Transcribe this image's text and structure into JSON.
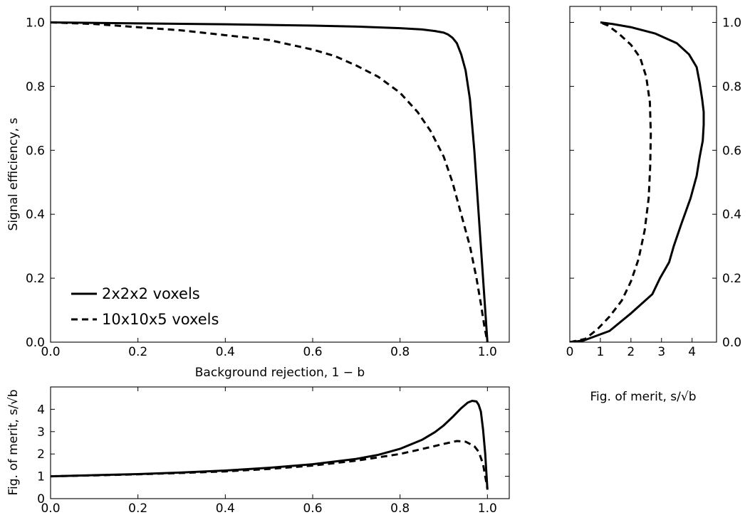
{
  "chart_data": [
    {
      "id": "main",
      "type": "line",
      "title": "",
      "xlabel": "Background rejection, 1 − b",
      "ylabel": "Signal efficiency, s",
      "xlim": [
        0,
        1.05
      ],
      "ylim": [
        0,
        1.05
      ],
      "xticks": [
        "0.0",
        "0.2",
        "0.4",
        "0.6",
        "0.8",
        "1.0"
      ],
      "yticks": [
        "0.0",
        "0.2",
        "0.4",
        "0.6",
        "0.8",
        "1.0"
      ],
      "grid": false,
      "legend_position": "lower-left",
      "series": [
        {
          "name": "2x2x2 voxels",
          "style": "solid",
          "x": [
            0.0,
            0.2,
            0.4,
            0.6,
            0.7,
            0.8,
            0.85,
            0.88,
            0.9,
            0.91,
            0.92,
            0.93,
            0.94,
            0.95,
            0.96,
            0.97,
            0.975,
            0.98,
            0.985,
            0.99,
            0.995,
            1.0
          ],
          "y": [
            1.0,
            0.997,
            0.994,
            0.99,
            0.987,
            0.982,
            0.978,
            0.973,
            0.968,
            0.962,
            0.952,
            0.935,
            0.9,
            0.85,
            0.76,
            0.6,
            0.5,
            0.4,
            0.3,
            0.2,
            0.1,
            0.0
          ]
        },
        {
          "name": "10x10x5 voxels",
          "style": "dashed",
          "x": [
            0.0,
            0.1,
            0.2,
            0.3,
            0.4,
            0.5,
            0.6,
            0.65,
            0.7,
            0.75,
            0.8,
            0.84,
            0.87,
            0.9,
            0.92,
            0.94,
            0.96,
            0.975,
            0.985,
            0.993,
            1.0
          ],
          "y": [
            1.0,
            0.995,
            0.985,
            0.975,
            0.96,
            0.945,
            0.915,
            0.895,
            0.865,
            0.83,
            0.78,
            0.72,
            0.66,
            0.58,
            0.5,
            0.4,
            0.3,
            0.2,
            0.12,
            0.05,
            0.0
          ]
        }
      ]
    },
    {
      "id": "right",
      "type": "line",
      "title": "",
      "xlabel": "Fig. of merit, s/√b",
      "ylabel": "",
      "xlim": [
        0,
        4.8
      ],
      "ylim": [
        0,
        1.05
      ],
      "xticks": [
        "0",
        "1",
        "2",
        "3",
        "4"
      ],
      "yticks": [
        "0.0",
        "0.2",
        "0.4",
        "0.6",
        "0.8",
        "1.0"
      ],
      "grid": false,
      "series": [
        {
          "name": "2x2x2 voxels",
          "style": "solid",
          "x": [
            0.0,
            0.45,
            1.3,
            2.0,
            2.7,
            2.95,
            3.25,
            3.4,
            3.65,
            3.95,
            4.15,
            4.25,
            4.35,
            4.38,
            4.38,
            4.33,
            4.25,
            4.15,
            3.9,
            3.5,
            2.8,
            2.0,
            1.4,
            1.0
          ],
          "y": [
            0.0,
            0.005,
            0.035,
            0.09,
            0.15,
            0.2,
            0.25,
            0.3,
            0.37,
            0.45,
            0.52,
            0.58,
            0.63,
            0.68,
            0.72,
            0.76,
            0.81,
            0.86,
            0.9,
            0.935,
            0.965,
            0.985,
            0.995,
            1.0
          ]
        },
        {
          "name": "10x10x5 voxels",
          "style": "dashed",
          "x": [
            0.0,
            0.5,
            0.9,
            1.3,
            1.7,
            2.0,
            2.25,
            2.45,
            2.58,
            2.63,
            2.65,
            2.62,
            2.5,
            2.3,
            2.0,
            1.6,
            1.25,
            1.0
          ],
          "y": [
            0.0,
            0.01,
            0.04,
            0.08,
            0.13,
            0.19,
            0.26,
            0.35,
            0.45,
            0.55,
            0.65,
            0.75,
            0.83,
            0.89,
            0.93,
            0.965,
            0.99,
            1.0
          ]
        }
      ]
    },
    {
      "id": "bottom",
      "type": "line",
      "title": "",
      "xlabel": "",
      "ylabel": "Fig. of merit, s/√b",
      "xlim": [
        0,
        1.05
      ],
      "ylim": [
        0,
        5
      ],
      "xticks": [
        "0.0",
        "0.2",
        "0.4",
        "0.6",
        "0.8",
        "1.0"
      ],
      "yticks": [
        "0",
        "1",
        "2",
        "3",
        "4"
      ],
      "grid": false,
      "series": [
        {
          "name": "2x2x2 voxels",
          "style": "solid",
          "x": [
            0.0,
            0.1,
            0.2,
            0.3,
            0.4,
            0.5,
            0.6,
            0.7,
            0.75,
            0.8,
            0.85,
            0.88,
            0.9,
            0.92,
            0.94,
            0.955,
            0.965,
            0.975,
            0.98,
            0.985,
            0.99,
            0.995,
            1.0
          ],
          "y": [
            1.0,
            1.05,
            1.1,
            1.17,
            1.26,
            1.38,
            1.54,
            1.78,
            1.96,
            2.23,
            2.63,
            2.98,
            3.28,
            3.65,
            4.05,
            4.3,
            4.38,
            4.35,
            4.2,
            3.9,
            3.1,
            2.0,
            0.4
          ]
        },
        {
          "name": "10x10x5 voxels",
          "style": "dashed",
          "x": [
            0.0,
            0.1,
            0.2,
            0.3,
            0.4,
            0.5,
            0.6,
            0.7,
            0.8,
            0.85,
            0.9,
            0.93,
            0.95,
            0.97,
            0.98,
            0.99,
            0.995,
            1.0
          ],
          "y": [
            1.0,
            1.04,
            1.09,
            1.15,
            1.22,
            1.33,
            1.48,
            1.7,
            2.0,
            2.22,
            2.45,
            2.58,
            2.55,
            2.35,
            2.1,
            1.55,
            1.0,
            0.45
          ]
        }
      ]
    }
  ]
}
